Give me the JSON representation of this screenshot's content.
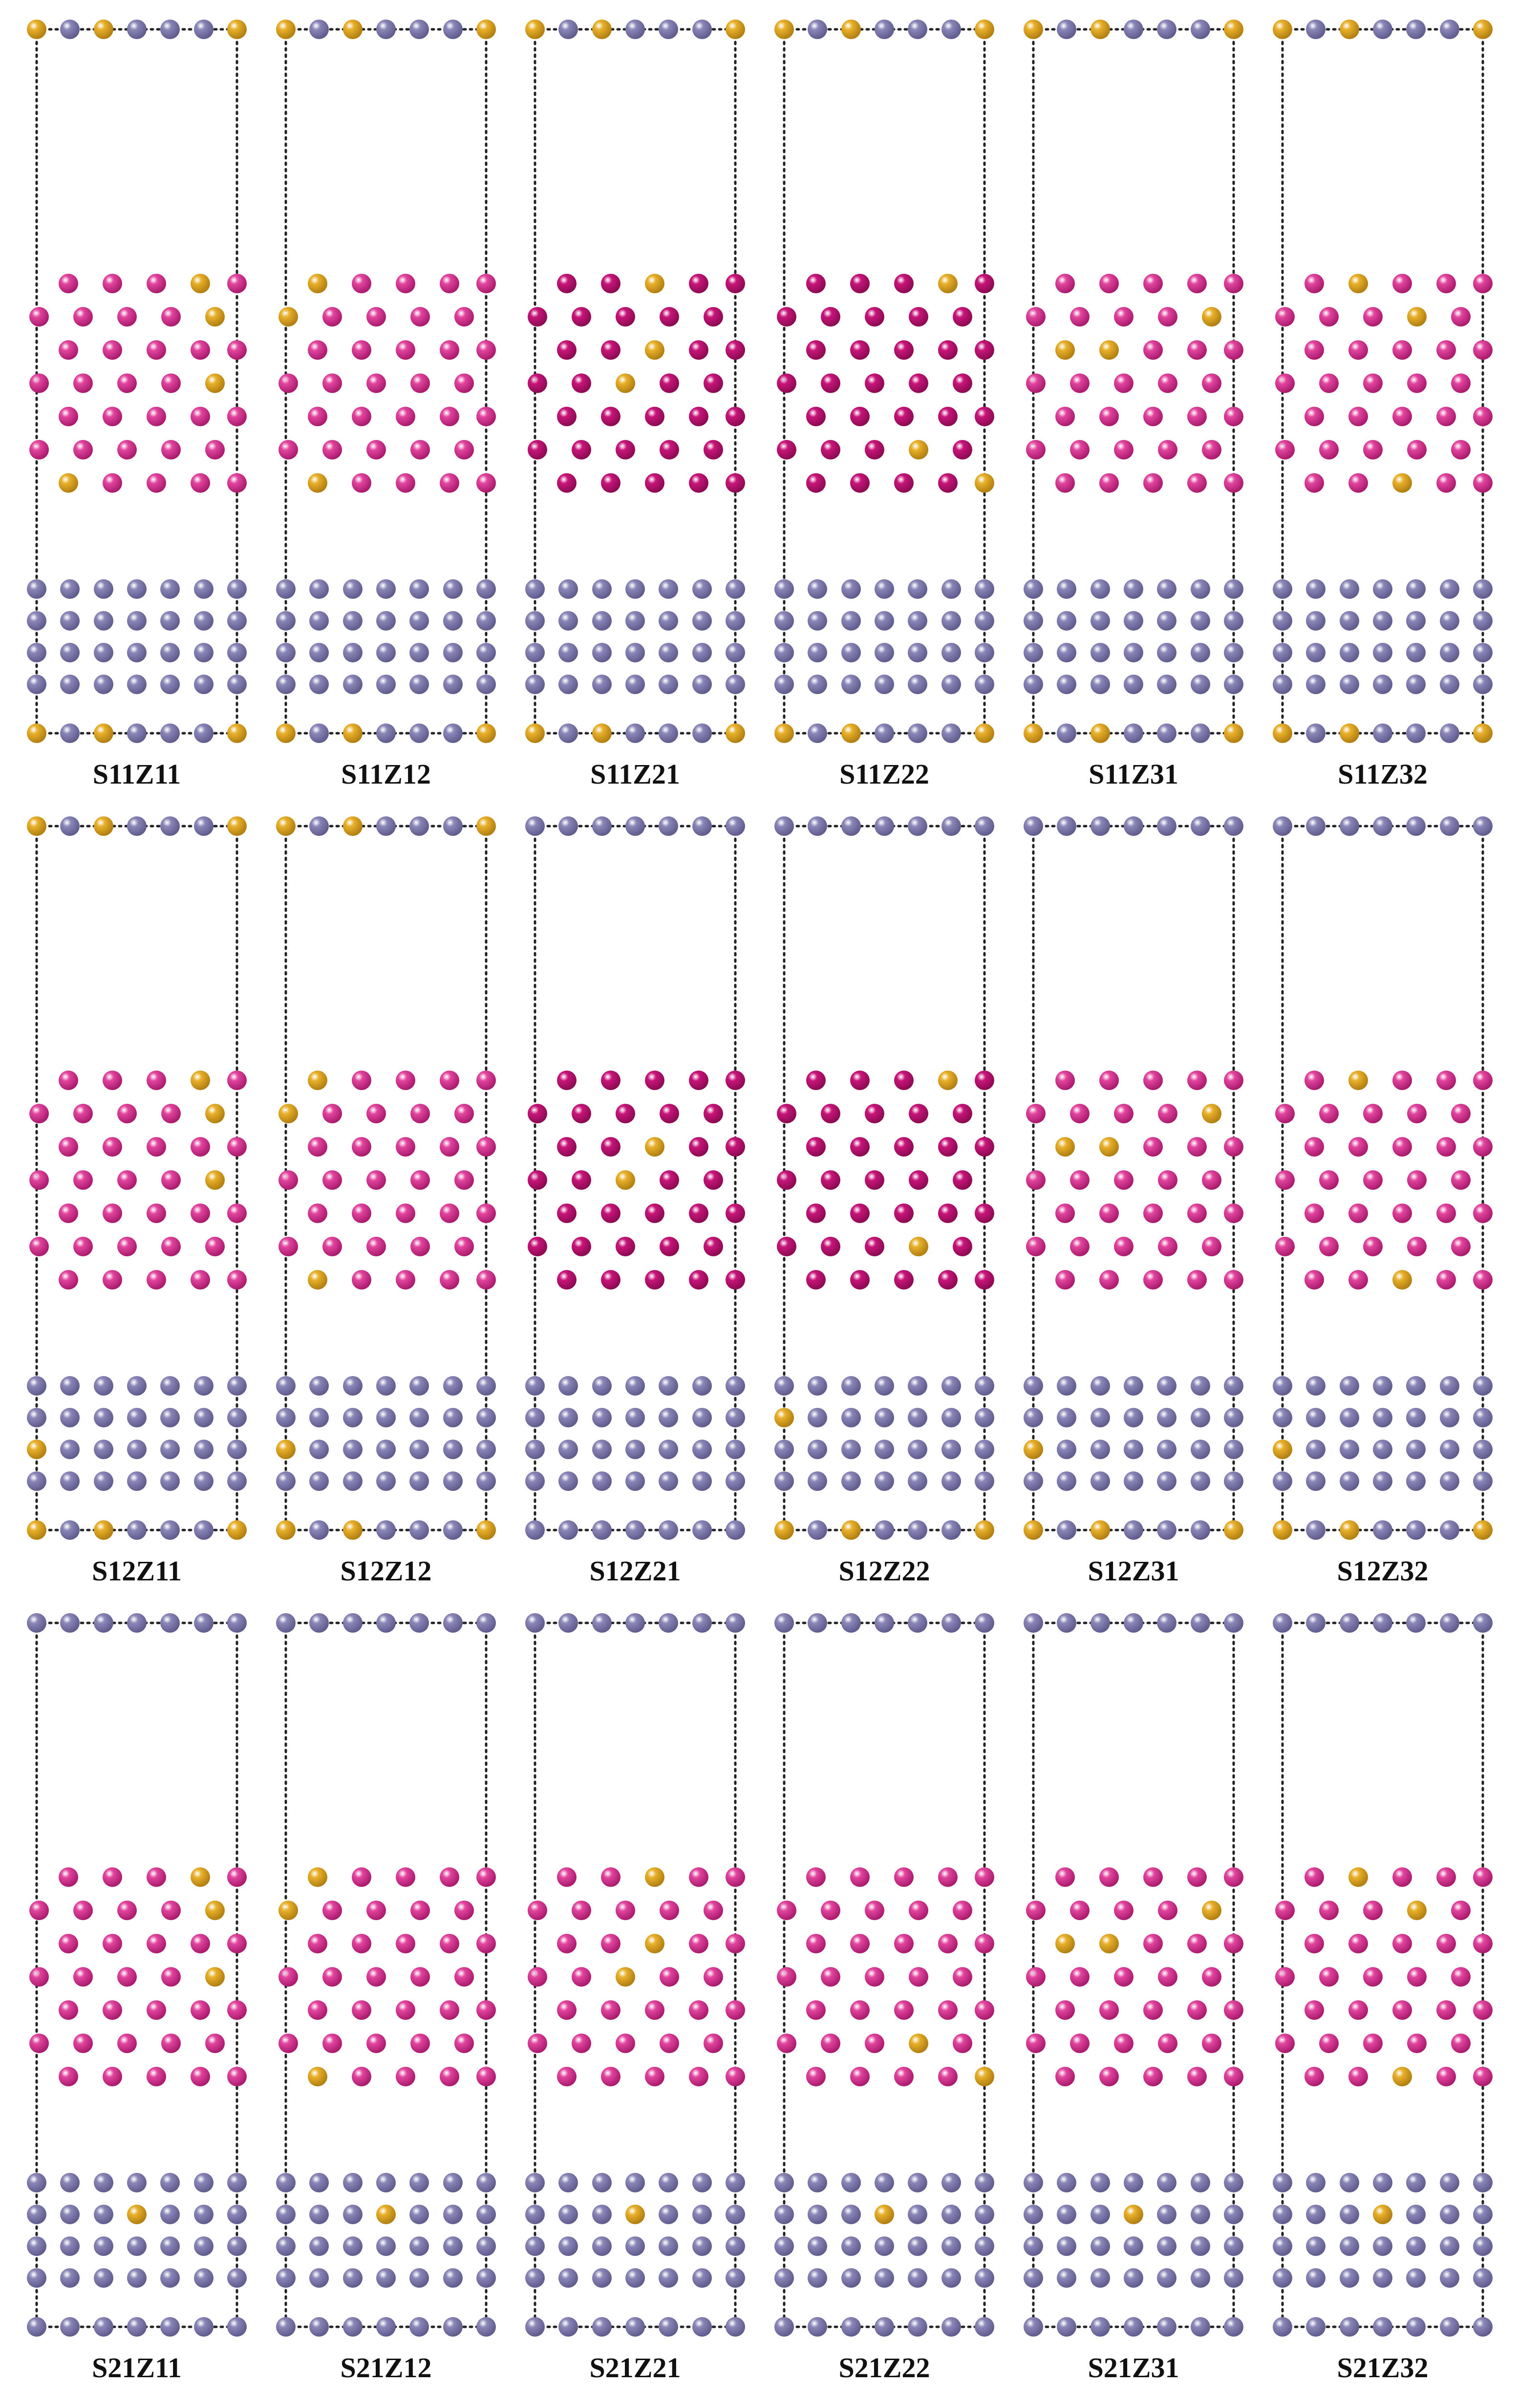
{
  "figure": {
    "rows": [
      {
        "panels": [
          {
            "label": "S11Z11",
            "surface_gold": [
              "top",
              "bottom"
            ],
            "slab_gold": [],
            "film": "pink",
            "film_gold": [
              [
                3,
                0
              ],
              [
                4,
                1
              ],
              [
                4,
                3
              ],
              [
                0,
                6
              ]
            ]
          },
          {
            "label": "S11Z12",
            "surface_gold": [
              "top",
              "bottom"
            ],
            "slab_gold": [],
            "film": "pink",
            "film_gold": [
              [
                0,
                0
              ],
              [
                0,
                1
              ],
              [
                0,
                6
              ]
            ]
          },
          {
            "label": "S11Z21",
            "surface_gold": [
              "top",
              "bottom"
            ],
            "slab_gold": [],
            "film": "magenta",
            "film_gold": [
              [
                2,
                0
              ],
              [
                2,
                2
              ],
              [
                2,
                3
              ]
            ]
          },
          {
            "label": "S11Z22",
            "surface_gold": [
              "top",
              "bottom"
            ],
            "slab_gold": [],
            "film": "magenta",
            "film_gold": [
              [
                3,
                0
              ],
              [
                3,
                5
              ],
              [
                4,
                6
              ]
            ]
          },
          {
            "label": "S11Z31",
            "surface_gold": [
              "top",
              "bottom"
            ],
            "slab_gold": [],
            "film": "pink",
            "film_gold": [
              [
                4,
                1
              ],
              [
                0,
                2
              ],
              [
                1,
                2
              ]
            ]
          },
          {
            "label": "S11Z32",
            "surface_gold": [
              "top",
              "bottom"
            ],
            "slab_gold": [],
            "film": "pink",
            "film_gold": [
              [
                1,
                0
              ],
              [
                3,
                1
              ],
              [
                2,
                6
              ]
            ]
          }
        ]
      },
      {
        "panels": [
          {
            "label": "S12Z11",
            "surface_gold": [
              "top",
              "bottom"
            ],
            "slab_gold": [
              [
                0,
                2
              ]
            ],
            "film": "pink",
            "film_gold": [
              [
                3,
                0
              ],
              [
                4,
                1
              ],
              [
                4,
                3
              ]
            ]
          },
          {
            "label": "S12Z12",
            "surface_gold": [
              "top",
              "bottom"
            ],
            "slab_gold": [
              [
                0,
                2
              ]
            ],
            "film": "pink",
            "film_gold": [
              [
                0,
                0
              ],
              [
                0,
                1
              ],
              [
                0,
                6
              ]
            ]
          },
          {
            "label": "S12Z21",
            "surface_gold": [],
            "slab_gold": [],
            "film": "magenta",
            "film_gold": [
              [
                2,
                2
              ],
              [
                2,
                3
              ]
            ]
          },
          {
            "label": "S12Z22",
            "surface_gold": [
              "bottom"
            ],
            "slab_gold": [
              [
                0,
                1
              ]
            ],
            "film": "magenta",
            "film_gold": [
              [
                3,
                0
              ],
              [
                3,
                5
              ]
            ]
          },
          {
            "label": "S12Z31",
            "surface_gold": [
              "bottom"
            ],
            "slab_gold": [
              [
                0,
                2
              ]
            ],
            "film": "pink",
            "film_gold": [
              [
                4,
                1
              ],
              [
                0,
                2
              ],
              [
                1,
                2
              ]
            ]
          },
          {
            "label": "S12Z32",
            "surface_gold": [
              "bottom"
            ],
            "slab_gold": [
              [
                0,
                2
              ]
            ],
            "film": "pink",
            "film_gold": [
              [
                1,
                0
              ],
              [
                2,
                6
              ]
            ]
          }
        ]
      },
      {
        "panels": [
          {
            "label": "S21Z11",
            "surface_gold": [],
            "slab_gold": [
              [
                3,
                1
              ]
            ],
            "film": "pink",
            "film_gold": [
              [
                3,
                0
              ],
              [
                4,
                1
              ],
              [
                4,
                3
              ]
            ]
          },
          {
            "label": "S21Z12",
            "surface_gold": [],
            "slab_gold": [
              [
                3,
                1
              ]
            ],
            "film": "pink",
            "film_gold": [
              [
                0,
                0
              ],
              [
                0,
                1
              ],
              [
                0,
                6
              ]
            ]
          },
          {
            "label": "S21Z21",
            "surface_gold": [],
            "slab_gold": [
              [
                3,
                1
              ]
            ],
            "film": "pink",
            "film_gold": [
              [
                2,
                0
              ],
              [
                2,
                2
              ],
              [
                2,
                3
              ]
            ]
          },
          {
            "label": "S21Z22",
            "surface_gold": [],
            "slab_gold": [
              [
                3,
                1
              ]
            ],
            "film": "pink",
            "film_gold": [
              [
                3,
                5
              ],
              [
                4,
                6
              ]
            ]
          },
          {
            "label": "S21Z31",
            "surface_gold": [],
            "slab_gold": [
              [
                3,
                1
              ]
            ],
            "film": "pink",
            "film_gold": [
              [
                4,
                1
              ],
              [
                0,
                2
              ],
              [
                1,
                2
              ]
            ]
          },
          {
            "label": "S21Z32",
            "surface_gold": [],
            "slab_gold": [
              [
                3,
                1
              ]
            ],
            "film": "pink",
            "film_gold": [
              [
                1,
                0
              ],
              [
                3,
                1
              ],
              [
                2,
                6
              ]
            ]
          }
        ]
      }
    ]
  },
  "colors": {
    "slab_atom": "#8a86b8",
    "slab_atom_dark": "#5e5a8c",
    "gold_atom": "#e8b02a",
    "gold_atom_dark": "#b07d10",
    "pink_atom": "#e2459e",
    "pink_atom_dark": "#a8196b",
    "magenta_atom": "#c8157a",
    "magenta_atom_dark": "#8a0a50",
    "cell_line": "#222222",
    "label_text": "#111111"
  }
}
